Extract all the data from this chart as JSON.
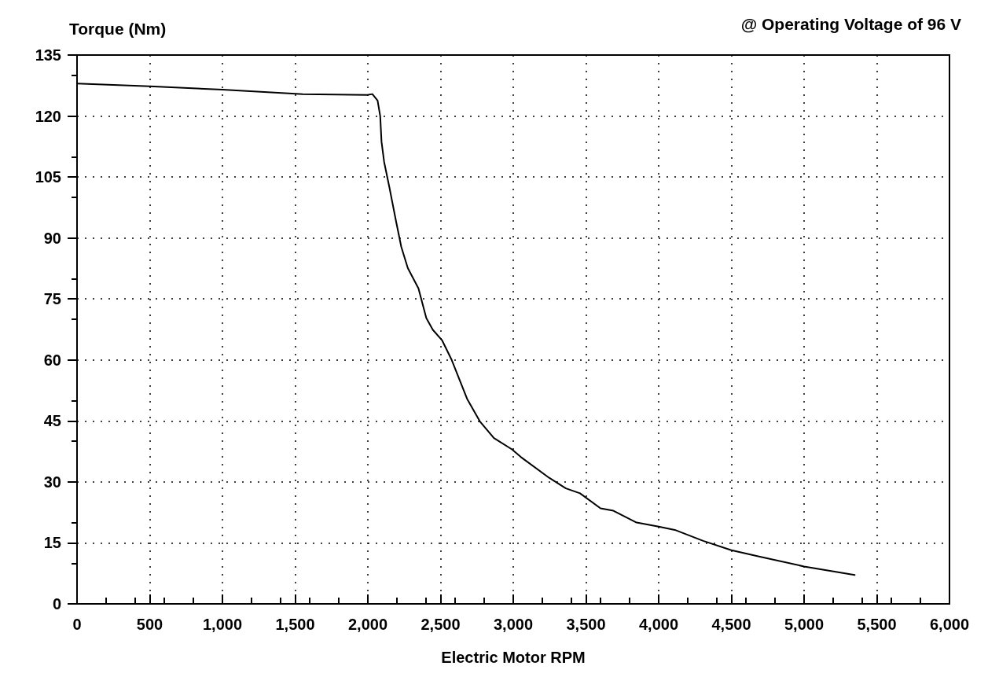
{
  "chart_data": {
    "type": "line",
    "xlabel": "Electric Motor RPM",
    "ylabel": "Torque (Nm)",
    "annotations": [
      "@ Operating Voltage of 96 V"
    ],
    "x": [
      0,
      500,
      1000,
      1551,
      1996,
      2031,
      2067,
      2085,
      2094,
      2112,
      2149,
      2194,
      2230,
      2275,
      2348,
      2402,
      2447,
      2511,
      2574,
      2683,
      2770,
      2867,
      2991,
      3053,
      3247,
      3362,
      3459,
      3600,
      3689,
      3848,
      4000,
      4111,
      4306,
      4500,
      4696,
      5000,
      5348
    ],
    "series": [
      {
        "color": "#000000",
        "values": [
          128,
          127.3,
          126.5,
          125.4,
          125.2,
          125.4,
          123.8,
          120,
          113.7,
          108.7,
          102.3,
          94.1,
          87.8,
          82.6,
          77.6,
          70.3,
          67.4,
          64.8,
          60.2,
          50.4,
          44.9,
          40.8,
          38,
          36.1,
          31,
          28.4,
          27.2,
          23.5,
          22.9,
          20,
          19,
          18.2,
          15.5,
          13.2,
          11.6,
          9.2,
          7.1
        ]
      }
    ],
    "xlim": [
      0,
      6000
    ],
    "xticks": [
      0,
      500,
      {
        "value": 1000,
        "label": "1,000"
      },
      {
        "value": 1500,
        "label": "1,500"
      },
      {
        "value": 2000,
        "label": "2,000"
      },
      {
        "value": 2500,
        "label": "2,500"
      },
      {
        "value": 3000,
        "label": "3,000"
      },
      {
        "value": 3500,
        "label": "3,500"
      },
      {
        "value": 4000,
        "label": "4,000"
      },
      {
        "value": 4500,
        "label": "4,500"
      },
      {
        "value": 5000,
        "label": "5,000"
      },
      {
        "value": 5500,
        "label": "5,500"
      },
      {
        "value": 6000,
        "label": "6,000"
      }
    ],
    "ylim": [
      0,
      135
    ],
    "yticks": [
      0,
      15,
      30,
      45,
      60,
      75,
      90,
      105,
      120,
      135
    ],
    "grid": true,
    "marker": "none",
    "line_style": "solid"
  }
}
